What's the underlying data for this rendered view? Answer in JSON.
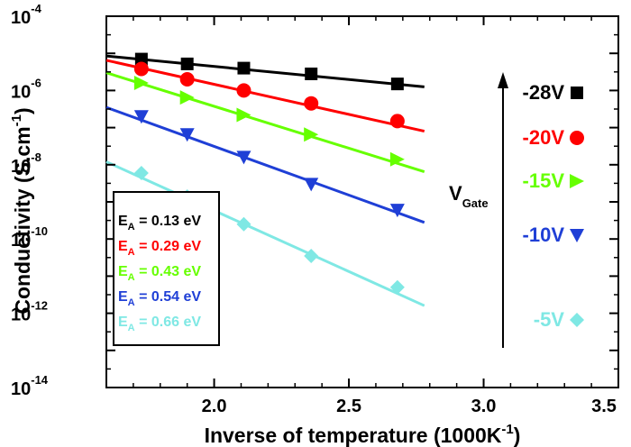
{
  "chart_data": {
    "type": "scatter",
    "title": "",
    "xlabel": {
      "main": "Inverse of temperature (1000K",
      "sup": "-1",
      "tail": ")"
    },
    "ylabel": {
      "main": "Conductivity (S.cm",
      "sup": "-1",
      "tail": ")"
    },
    "xlim": [
      1.6,
      3.5
    ],
    "ylim": [
      1e-14,
      0.0001
    ],
    "yscale": "log",
    "grid": false,
    "xticks": [
      {
        "value": 2.0,
        "label": "2.0"
      },
      {
        "value": 2.5,
        "label": "2.5"
      },
      {
        "value": 3.0,
        "label": "3.0"
      },
      {
        "value": 3.5,
        "label": "3.5"
      }
    ],
    "yticks": [
      {
        "exp": -14,
        "base": "10",
        "sup": "-14"
      },
      {
        "exp": -12,
        "base": "10",
        "sup": "-12"
      },
      {
        "exp": -10,
        "base": "10",
        "sup": "-10"
      },
      {
        "exp": -8,
        "base": "10",
        "sup": "-8"
      },
      {
        "exp": -6,
        "base": "10",
        "sup": "-6"
      },
      {
        "exp": -4,
        "base": "10",
        "sup": "-4"
      }
    ],
    "series": [
      {
        "gate_label": "-28V",
        "color": "#000000",
        "marker": "square",
        "ea": {
          "symbol": "E",
          "sub": "A",
          "text": " = 0.13 eV"
        },
        "x": [
          1.73,
          1.9,
          2.11,
          2.36,
          2.68
        ],
        "y": [
          7e-06,
          5.2e-06,
          4e-06,
          2.8e-06,
          1.5e-06
        ],
        "fit_x": [
          1.6,
          2.78
        ],
        "fit_y": [
          8.5e-06,
          1.25e-06
        ]
      },
      {
        "gate_label": "-20V",
        "color": "#ff0000",
        "marker": "circle",
        "ea": {
          "symbol": "E",
          "sub": "A",
          "text": " = 0.29 eV"
        },
        "x": [
          1.73,
          1.9,
          2.11,
          2.36,
          2.68
        ],
        "y": [
          3.8e-06,
          2e-06,
          1e-06,
          4.5e-07,
          1.5e-07
        ],
        "fit_x": [
          1.6,
          2.78
        ],
        "fit_y": [
          6.5e-06,
          8e-08
        ]
      },
      {
        "gate_label": "-15V",
        "color": "#66ff00",
        "marker": "triangle-right",
        "ea": {
          "symbol": "E",
          "sub": "A",
          "text": " = 0.43 eV"
        },
        "x": [
          1.73,
          1.9,
          2.11,
          2.36,
          2.68
        ],
        "y": [
          1.6e-06,
          6.5e-07,
          2.2e-07,
          6.5e-08,
          1.4e-08
        ],
        "fit_x": [
          1.6,
          2.78
        ],
        "fit_y": [
          3e-06,
          6.5e-09
        ]
      },
      {
        "gate_label": "-10V",
        "color": "#1f3fd6",
        "marker": "triangle-down",
        "ea": {
          "symbol": "E",
          "sub": "A",
          "text": " = 0.54 eV"
        },
        "x": [
          1.73,
          1.9,
          2.11,
          2.36,
          2.68
        ],
        "y": [
          2e-07,
          6.5e-08,
          1.6e-08,
          3e-09,
          6e-10
        ],
        "fit_x": [
          1.6,
          2.78
        ],
        "fit_y": [
          3.5e-07,
          2.8e-10
        ]
      },
      {
        "gate_label": "-5V",
        "color": "#7fe8e4",
        "marker": "diamond",
        "ea": {
          "symbol": "E",
          "sub": "A",
          "text": " = 0.66 eV"
        },
        "x": [
          1.73,
          1.9,
          2.11,
          2.36,
          2.68
        ],
        "y": [
          6e-09,
          1.4e-09,
          2.5e-10,
          3.5e-11,
          5e-12
        ],
        "fit_x": [
          1.6,
          2.78
        ],
        "fit_y": [
          1.2e-08,
          1.6e-12
        ]
      }
    ],
    "gate_annotation": {
      "main": "V",
      "sub": "Gate",
      "arrow": "up"
    }
  }
}
